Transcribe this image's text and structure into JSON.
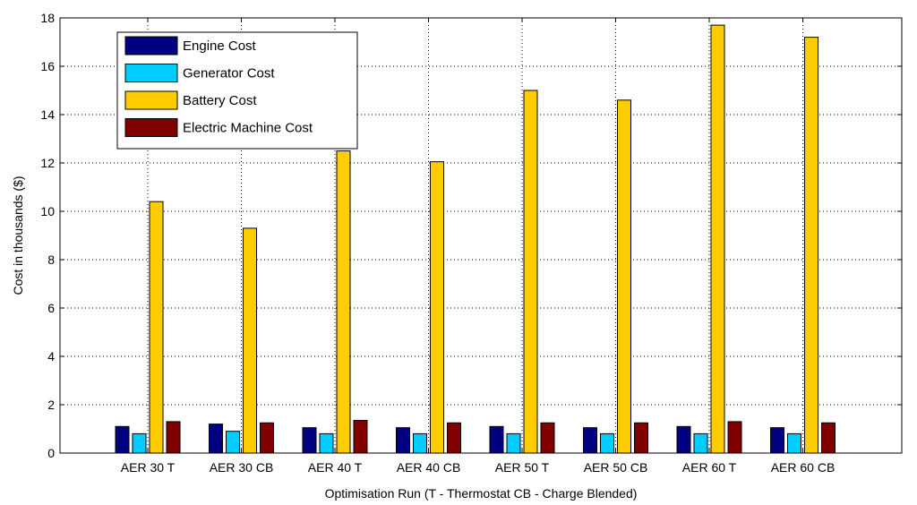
{
  "chart_data": {
    "type": "bar",
    "title": "",
    "xlabel": "Optimisation Run (T - Thermostat CB - Charge Blended)",
    "ylabel": "Cost in thousands ($)",
    "ylim": [
      0,
      18
    ],
    "yticks": [
      0,
      2,
      4,
      6,
      8,
      10,
      12,
      14,
      16,
      18
    ],
    "grid": true,
    "legend_position": "top-left",
    "categories": [
      "AER 30 T",
      "AER 30 CB",
      "AER 40 T",
      "AER 40 CB",
      "AER 50 T",
      "AER 50 CB",
      "AER 60 T",
      "AER 60 CB"
    ],
    "series": [
      {
        "name": "Engine Cost",
        "color": "#000080",
        "values": [
          1.1,
          1.2,
          1.05,
          1.05,
          1.1,
          1.05,
          1.1,
          1.05
        ]
      },
      {
        "name": "Generator Cost",
        "color": "#00ccff",
        "values": [
          0.8,
          0.9,
          0.8,
          0.8,
          0.8,
          0.8,
          0.8,
          0.8
        ]
      },
      {
        "name": "Battery Cost",
        "color": "#ffcc00",
        "values": [
          10.4,
          9.3,
          12.5,
          12.05,
          15.0,
          14.6,
          17.7,
          17.2
        ]
      },
      {
        "name": "Electric Machine Cost",
        "color": "#800000",
        "values": [
          1.3,
          1.25,
          1.35,
          1.25,
          1.25,
          1.25,
          1.3,
          1.25
        ]
      }
    ]
  }
}
